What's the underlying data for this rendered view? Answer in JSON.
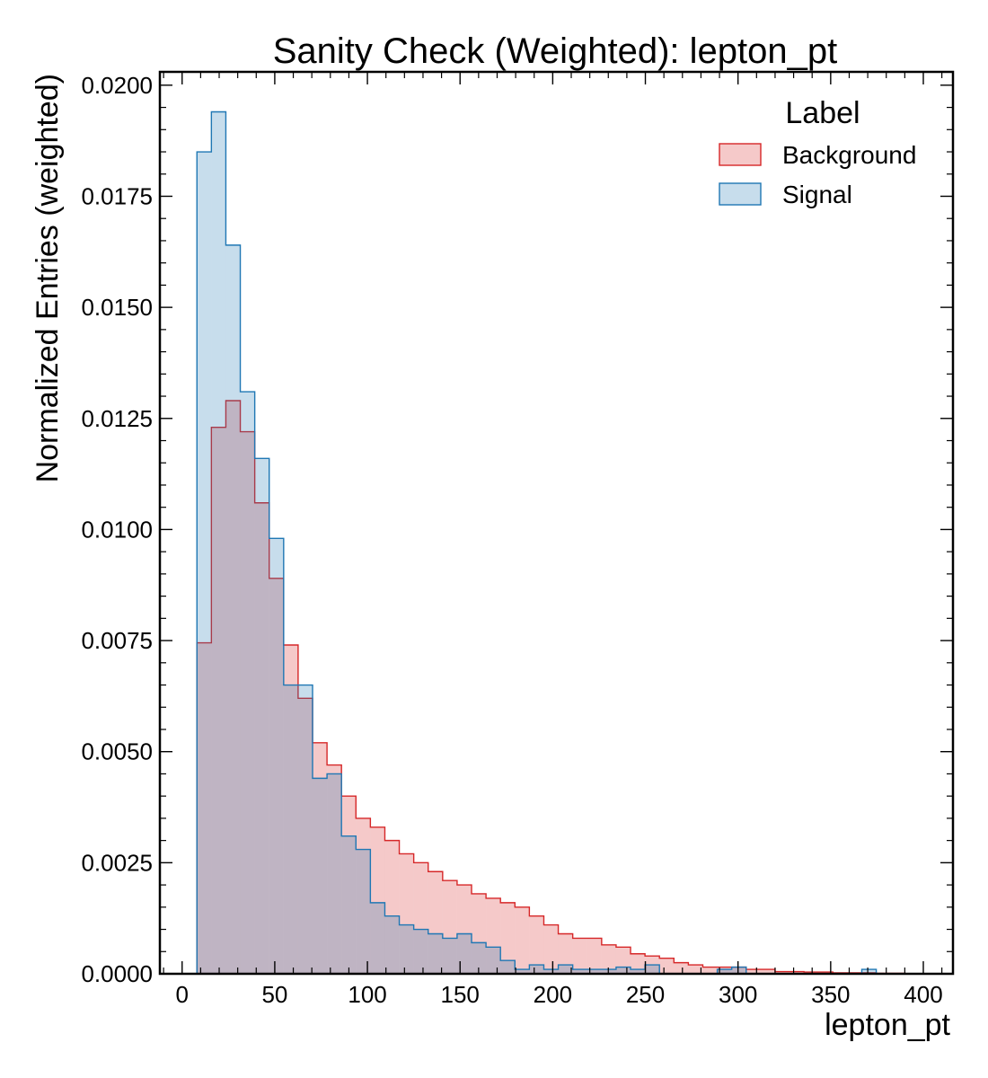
{
  "chart_data": {
    "type": "histogram",
    "title": "Sanity Check (Weighted): lepton_pt",
    "xlabel": "lepton_pt",
    "ylabel": "Normalized Entries (weighted)",
    "xlim": [
      -12,
      416
    ],
    "ylim": [
      0,
      0.0203
    ],
    "xticks": [
      0,
      50,
      100,
      150,
      200,
      250,
      300,
      350,
      400
    ],
    "xtick_labels": [
      "0",
      "50",
      "100",
      "150",
      "200",
      "250",
      "300",
      "350",
      "400"
    ],
    "yticks": [
      0.0,
      0.0025,
      0.005,
      0.0075,
      0.01,
      0.0125,
      0.015,
      0.0175,
      0.02
    ],
    "ytick_labels": [
      "0.0000",
      "0.0025",
      "0.0050",
      "0.0075",
      "0.0100",
      "0.0125",
      "0.0150",
      "0.0175",
      "0.0200"
    ],
    "bin_edges": [
      8,
      15.8,
      23.6,
      31.4,
      39.2,
      47,
      54.8,
      62.6,
      70.4,
      78.2,
      86,
      93.8,
      101.6,
      109.4,
      117.2,
      125,
      132.8,
      140.6,
      148.4,
      156.2,
      164,
      171.8,
      179.6,
      187.4,
      195.2,
      203,
      210.8,
      218.6,
      226.4,
      234.2,
      242,
      249.8,
      257.6,
      265.4,
      273.2,
      281,
      288.8,
      296.6,
      304.4,
      312.2,
      320,
      327.8,
      335.6,
      343.4,
      351.2,
      359,
      366.8,
      374.6,
      382.4,
      390.2,
      398
    ],
    "legend": {
      "title": "Label",
      "position": "top-right"
    },
    "series": [
      {
        "name": "Background",
        "edge_color": "#d62728",
        "fill_color": "#d62728",
        "values": [
          0.00745,
          0.0123,
          0.0129,
          0.0122,
          0.0106,
          0.0089,
          0.0074,
          0.0062,
          0.0052,
          0.0047,
          0.004,
          0.0035,
          0.0033,
          0.003,
          0.0027,
          0.0025,
          0.0023,
          0.0021,
          0.002,
          0.0018,
          0.0017,
          0.0016,
          0.0015,
          0.0013,
          0.0011,
          0.0009,
          0.0008,
          0.0008,
          0.00065,
          0.0006,
          0.00045,
          0.0004,
          0.00035,
          0.00025,
          0.0002,
          0.00015,
          0.00015,
          0.00015,
          0.0001,
          0.0001,
          5e-05,
          5e-05,
          4e-05,
          4e-05,
          2e-05,
          2e-05,
          2e-05,
          1e-05,
          1e-05,
          0.0
        ]
      },
      {
        "name": "Signal",
        "edge_color": "#1f77b4",
        "fill_color": "#1f77b4",
        "values": [
          0.0185,
          0.0194,
          0.0164,
          0.0131,
          0.0116,
          0.0098,
          0.0065,
          0.0065,
          0.0044,
          0.0045,
          0.0031,
          0.0028,
          0.0016,
          0.0013,
          0.0011,
          0.001,
          0.0009,
          0.0008,
          0.0009,
          0.0007,
          0.0006,
          0.0003,
          0.0001,
          0.0002,
          0.0001,
          0.0002,
          0.0001,
          0.0001,
          0.0001,
          0.00015,
          0.0001,
          0.0002,
          0.0,
          0.0,
          0.0,
          0.0,
          0.0001,
          0.00015,
          0.0,
          0.0,
          0.0,
          0.0,
          0.0,
          0.0,
          0.0,
          0.0,
          0.0001,
          0.0,
          0.0,
          0.0
        ]
      }
    ]
  }
}
